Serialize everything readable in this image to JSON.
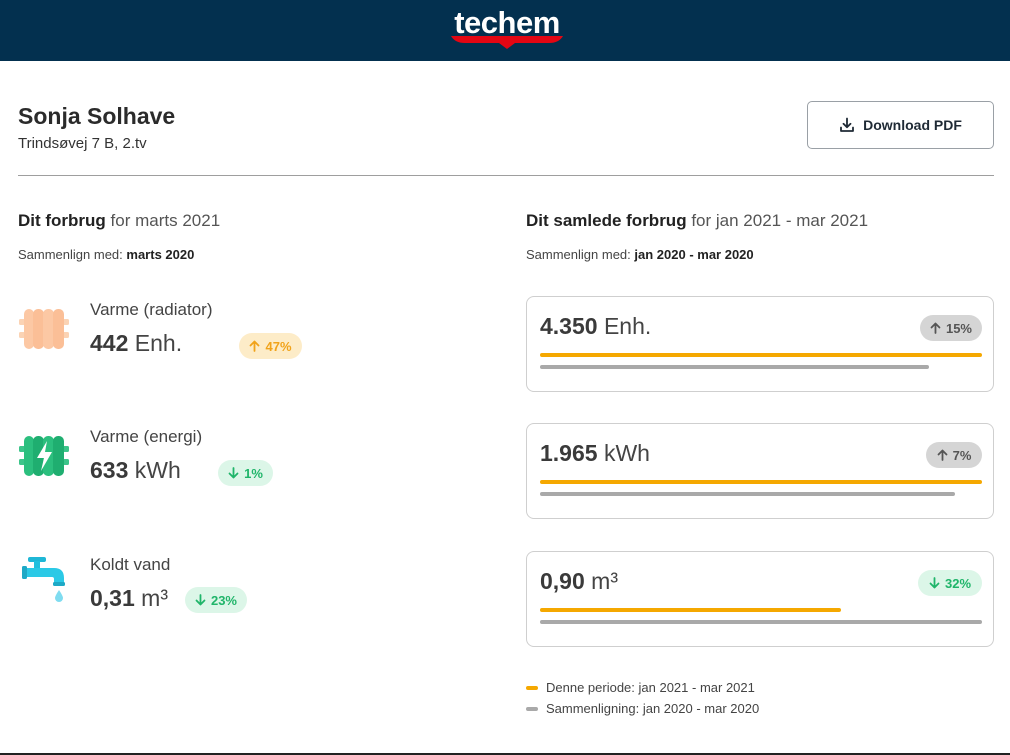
{
  "brand": {
    "logo_text": "techem",
    "header_color": "#03304f",
    "accent": "#e30613"
  },
  "customer": {
    "name": "Sonja Solhave",
    "address": "Trindsøvej 7 B, 2.tv"
  },
  "actions": {
    "download_label": "Download PDF",
    "download_icon": "download-icon"
  },
  "monthly": {
    "title_bold": "Dit forbrug",
    "title_rest": " for marts 2021",
    "compare_label": "Sammenlign med: ",
    "compare_value": "marts 2020",
    "meters": [
      {
        "label": "Varme (radiator)",
        "value": "442",
        "unit": " Enh.",
        "change": "47%",
        "direction": "up",
        "icon": "radiator-icon"
      },
      {
        "label": "Varme (energi)",
        "value": "633",
        "unit": " kWh",
        "change": "1%",
        "direction": "down",
        "icon": "energy-radiator-icon"
      },
      {
        "label": "Koldt vand",
        "value": "0,31",
        "unit": " m³",
        "change": "23%",
        "direction": "down",
        "icon": "water-tap-icon"
      }
    ]
  },
  "total": {
    "title_bold": "Dit samlede forbrug",
    "title_rest": " for jan 2021 - mar 2021",
    "compare_label": "Sammenlign med: ",
    "compare_value": "jan 2020 - mar 2020",
    "cards": [
      {
        "value": "4.350",
        "unit": " Enh.",
        "change": "15%",
        "direction": "up",
        "style": "grey",
        "current_fraction": 1.0,
        "compare_fraction": 0.88
      },
      {
        "value": "1.965",
        "unit": " kWh",
        "change": "7%",
        "direction": "up",
        "style": "grey",
        "current_fraction": 1.0,
        "compare_fraction": 0.94
      },
      {
        "value": "0,90",
        "unit": " m³",
        "change": "32%",
        "direction": "down",
        "style": "green",
        "current_fraction": 0.68,
        "compare_fraction": 1.0
      }
    ]
  },
  "legend": {
    "current": {
      "label": "Denne periode: jan 2021 - mar 2021",
      "color": "#f5a800"
    },
    "compare": {
      "label": "Sammenligning: jan 2020 - mar 2020",
      "color": "#a9a9a9"
    }
  }
}
